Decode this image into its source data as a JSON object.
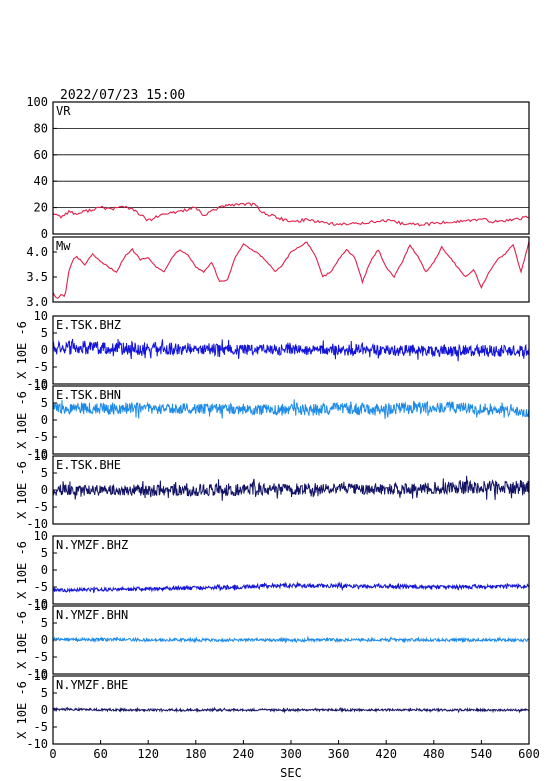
{
  "title": "2022/07/23 15:00",
  "x_axis": {
    "label": "SEC",
    "range": [
      0,
      600
    ],
    "ticks": [
      "0",
      "60",
      "120",
      "180",
      "240",
      "300",
      "360",
      "420",
      "480",
      "540",
      "600"
    ]
  },
  "colors": {
    "vr": "#e0204a",
    "mw": "#e0204a",
    "bhz": "#1414d8",
    "bhn": "#1e8ce6",
    "bhe": "#141464"
  },
  "chart_data": [
    {
      "type": "line",
      "name": "VR",
      "label": "VR",
      "ylim": [
        0,
        100
      ],
      "yticks": [
        "0",
        "20",
        "40",
        "60",
        "80",
        "100"
      ],
      "grid": true,
      "x": [
        0,
        10,
        20,
        30,
        45,
        60,
        75,
        90,
        105,
        120,
        135,
        150,
        165,
        180,
        190,
        200,
        210,
        225,
        240,
        255,
        265,
        280,
        300,
        320,
        340,
        360,
        380,
        400,
        420,
        440,
        460,
        480,
        500,
        520,
        540,
        560,
        580,
        600
      ],
      "values": [
        16,
        13,
        17,
        15,
        18,
        20,
        19,
        21,
        17,
        10,
        14,
        16,
        18,
        20,
        13,
        18,
        20,
        22,
        23,
        22,
        16,
        13,
        9,
        11,
        9,
        7,
        8,
        9,
        10,
        8,
        7,
        8,
        9,
        10,
        11,
        9,
        11,
        13
      ]
    },
    {
      "type": "line",
      "name": "Mw",
      "label": "Mw",
      "ylim": [
        3.0,
        4.3
      ],
      "yticks": [
        "3.0",
        "3.5",
        "4.0"
      ],
      "grid": false,
      "x": [
        0,
        5,
        10,
        15,
        20,
        25,
        30,
        40,
        50,
        60,
        70,
        80,
        90,
        100,
        110,
        120,
        130,
        140,
        150,
        160,
        170,
        180,
        190,
        200,
        210,
        220,
        230,
        240,
        250,
        260,
        270,
        280,
        290,
        300,
        310,
        320,
        330,
        340,
        350,
        360,
        370,
        380,
        390,
        400,
        410,
        420,
        430,
        440,
        450,
        460,
        470,
        480,
        490,
        500,
        510,
        520,
        530,
        540,
        550,
        560,
        570,
        580,
        590,
        600
      ],
      "values": [
        3.2,
        3.05,
        3.15,
        3.1,
        3.6,
        3.85,
        3.9,
        3.75,
        3.95,
        3.8,
        3.7,
        3.6,
        3.9,
        4.05,
        3.85,
        3.9,
        3.7,
        3.6,
        3.9,
        4.05,
        3.95,
        3.7,
        3.6,
        3.8,
        3.4,
        3.45,
        3.9,
        4.15,
        4.05,
        3.95,
        3.8,
        3.6,
        3.75,
        4.0,
        4.1,
        4.2,
        3.95,
        3.5,
        3.6,
        3.85,
        4.05,
        3.9,
        3.4,
        3.8,
        4.05,
        3.7,
        3.5,
        3.8,
        4.15,
        3.9,
        3.6,
        3.8,
        4.1,
        3.9,
        3.7,
        3.5,
        3.65,
        3.3,
        3.6,
        3.85,
        3.95,
        4.15,
        3.6,
        4.2
      ]
    },
    {
      "type": "line",
      "name": "E.TSK.BHZ",
      "label": "E.TSK.BHZ",
      "color_key": "bhz",
      "ylim": [
        -10,
        10
      ],
      "yticks": [
        "-10",
        "-5",
        "0",
        "5",
        "10"
      ],
      "ylabel": "X 10E -6",
      "x": [
        0,
        100,
        200,
        300,
        400,
        500,
        600
      ],
      "values": [
        0.8,
        0.5,
        0.3,
        0.0,
        0.0,
        -0.2,
        -0.3
      ],
      "amplitude": [
        4,
        3.5,
        3,
        2.8,
        3,
        3.2,
        3
      ]
    },
    {
      "type": "line",
      "name": "E.TSK.BHN",
      "label": "E.TSK.BHN",
      "color_key": "bhn",
      "ylim": [
        -10,
        10
      ],
      "yticks": [
        "-10",
        "-5",
        "0",
        "5",
        "10"
      ],
      "ylabel": "X 10E -6",
      "x": [
        0,
        100,
        200,
        300,
        400,
        500,
        600
      ],
      "values": [
        3.5,
        3.4,
        3.3,
        3.0,
        3.2,
        3.8,
        2.2
      ],
      "amplitude": [
        3,
        3.2,
        2.8,
        3.2,
        3.5,
        3.0,
        2.5
      ]
    },
    {
      "type": "line",
      "name": "E.TSK.BHE",
      "label": "E.TSK.BHE",
      "color_key": "bhe",
      "ylim": [
        -10,
        10
      ],
      "yticks": [
        "-10",
        "-5",
        "0",
        "5",
        "10"
      ],
      "ylabel": "X 10E -6",
      "x": [
        0,
        100,
        200,
        300,
        400,
        500,
        600
      ],
      "values": [
        0.0,
        0.0,
        0.0,
        0.3,
        0.3,
        0.5,
        1.0
      ],
      "amplitude": [
        3,
        3,
        3.5,
        3.2,
        3,
        3.5,
        4
      ]
    },
    {
      "type": "line",
      "name": "N.YMZF.BHZ",
      "label": "N.YMZF.BHZ",
      "color_key": "bhz",
      "ylim": [
        -10,
        10
      ],
      "yticks": [
        "-10",
        "-5",
        "0",
        "5",
        "10"
      ],
      "ylabel": "X 10E -6",
      "x": [
        0,
        100,
        200,
        300,
        400,
        500,
        600
      ],
      "values": [
        -6.0,
        -5.6,
        -5.2,
        -4.5,
        -4.8,
        -5.0,
        -4.8
      ],
      "amplitude": [
        1,
        1,
        1,
        1.2,
        1,
        1,
        1
      ]
    },
    {
      "type": "line",
      "name": "N.YMZF.BHN",
      "label": "N.YMZF.BHN",
      "color_key": "bhn",
      "ylim": [
        -10,
        10
      ],
      "yticks": [
        "-10",
        "-5",
        "0",
        "5",
        "10"
      ],
      "ylabel": "X 10E -6",
      "x": [
        0,
        100,
        200,
        300,
        400,
        500,
        600
      ],
      "values": [
        0.2,
        0.1,
        0.0,
        0.0,
        0.0,
        0.0,
        0.0
      ],
      "amplitude": [
        0.8,
        0.8,
        0.8,
        0.8,
        0.8,
        0.8,
        0.8
      ]
    },
    {
      "type": "line",
      "name": "N.YMZF.BHE",
      "label": "N.YMZF.BHE",
      "color_key": "bhe",
      "ylim": [
        -10,
        10
      ],
      "yticks": [
        "-10",
        "-5",
        "0",
        "5",
        "10"
      ],
      "ylabel": "X 10E -6",
      "x": [
        0,
        100,
        200,
        300,
        400,
        500,
        600
      ],
      "values": [
        0.2,
        0.0,
        0.0,
        0.0,
        0.0,
        0.0,
        0.0
      ],
      "amplitude": [
        0.6,
        0.6,
        0.6,
        0.6,
        0.6,
        0.6,
        0.6
      ]
    }
  ]
}
